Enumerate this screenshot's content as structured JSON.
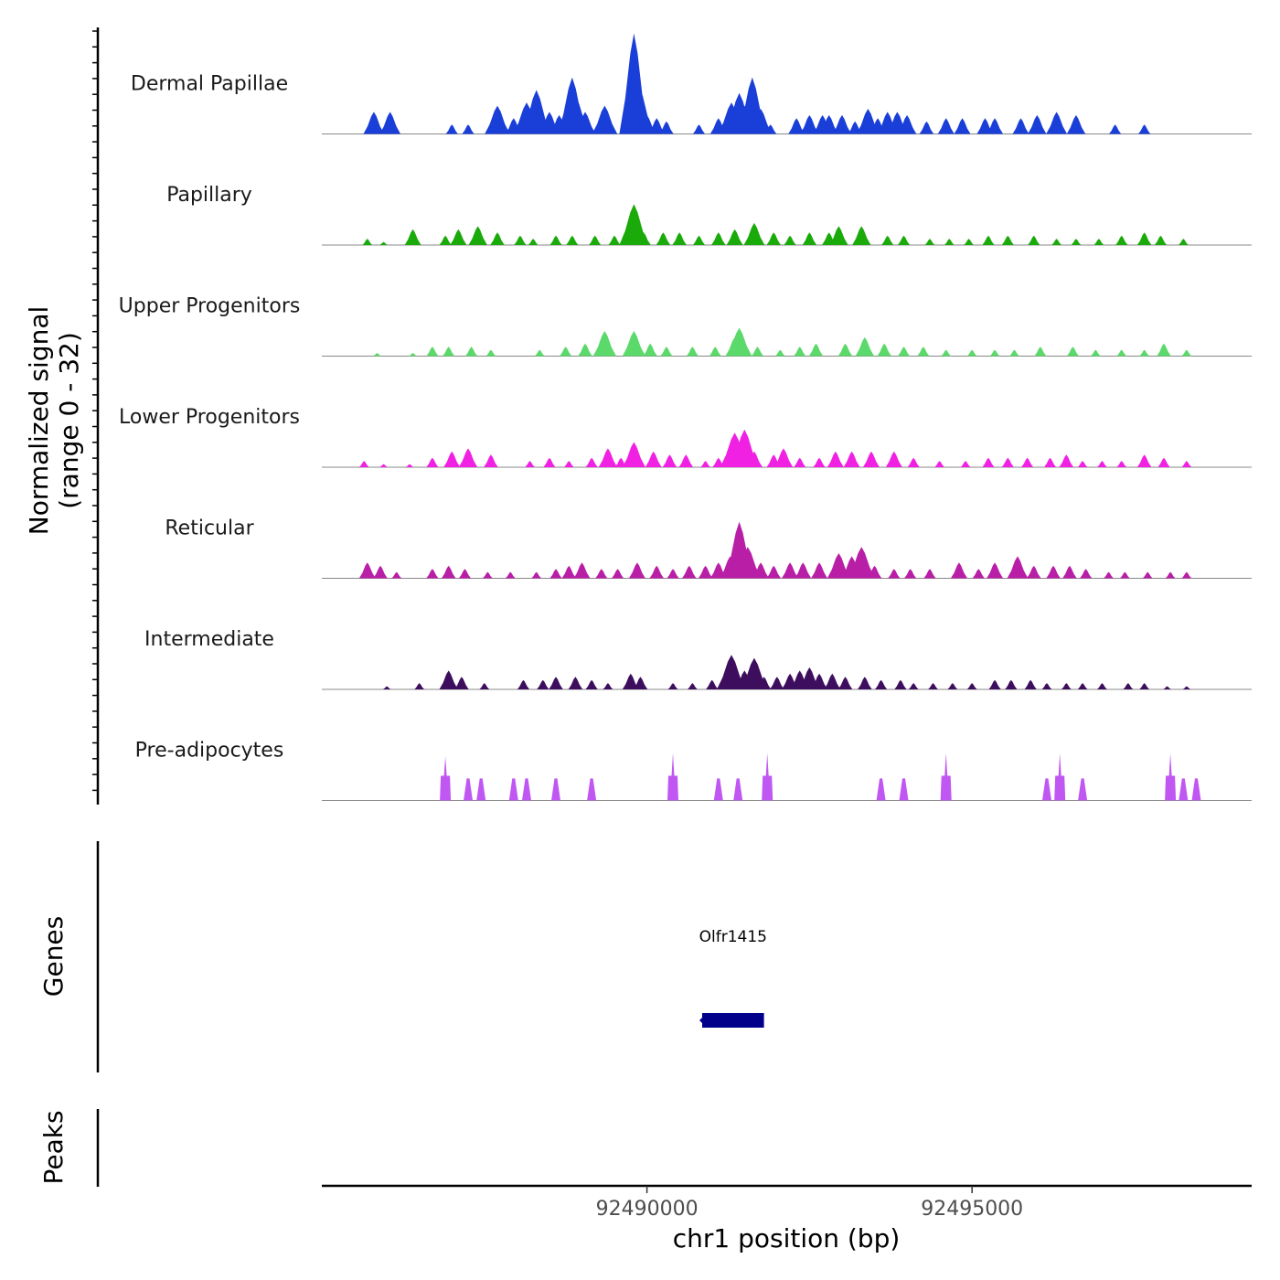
{
  "chart_data": {
    "type": "area",
    "title": "",
    "ylabel": "Normalized signal\n(range 0 - 32)",
    "ylabel_lines": [
      "Normalized signal",
      "(range 0 - 32)"
    ],
    "ylim": [
      0,
      32
    ],
    "xlabel": "chr1 position (bp)",
    "xlim": [
      92485000,
      92499300
    ],
    "xticks": [
      {
        "value": 92490000,
        "label": "92490000"
      },
      {
        "value": 92495000,
        "label": "92495000"
      }
    ],
    "tracks": [
      {
        "name": "Dermal Papillae",
        "color": "#1a3fd9",
        "peaks": [
          [
            92485800,
            7
          ],
          [
            92486050,
            7
          ],
          [
            92487000,
            3
          ],
          [
            92487250,
            3
          ],
          [
            92487700,
            9
          ],
          [
            92487950,
            5
          ],
          [
            92488150,
            10
          ],
          [
            92488300,
            14
          ],
          [
            92488500,
            7
          ],
          [
            92488650,
            6
          ],
          [
            92488850,
            18
          ],
          [
            92488900,
            12
          ],
          [
            92489050,
            7
          ],
          [
            92489350,
            9
          ],
          [
            92489800,
            32
          ],
          [
            92489880,
            15
          ],
          [
            92490000,
            6
          ],
          [
            92490150,
            5
          ],
          [
            92490300,
            4
          ],
          [
            92490800,
            3
          ],
          [
            92491100,
            5
          ],
          [
            92491300,
            10
          ],
          [
            92491420,
            13
          ],
          [
            92491500,
            9
          ],
          [
            92491620,
            18
          ],
          [
            92491650,
            12
          ],
          [
            92491750,
            8
          ],
          [
            92491900,
            3
          ],
          [
            92492300,
            5
          ],
          [
            92492500,
            6
          ],
          [
            92492700,
            6
          ],
          [
            92492800,
            6
          ],
          [
            92493000,
            6
          ],
          [
            92493200,
            4
          ],
          [
            92493400,
            8
          ],
          [
            92493550,
            5
          ],
          [
            92493700,
            7
          ],
          [
            92493850,
            7
          ],
          [
            92494000,
            6
          ],
          [
            92494300,
            4
          ],
          [
            92494600,
            5
          ],
          [
            92494850,
            5
          ],
          [
            92495200,
            5
          ],
          [
            92495350,
            5
          ],
          [
            92495750,
            5
          ],
          [
            92496000,
            6
          ],
          [
            92496300,
            7
          ],
          [
            92496600,
            6
          ],
          [
            92497200,
            3
          ],
          [
            92497650,
            3
          ]
        ]
      },
      {
        "name": "Papillary",
        "color": "#1aaa0a",
        "peaks": [
          [
            92485700,
            2
          ],
          [
            92485950,
            1
          ],
          [
            92486400,
            5
          ],
          [
            92486900,
            3
          ],
          [
            92487100,
            5
          ],
          [
            92487400,
            6
          ],
          [
            92487700,
            4
          ],
          [
            92488050,
            3
          ],
          [
            92488250,
            2
          ],
          [
            92488600,
            3
          ],
          [
            92488850,
            3
          ],
          [
            92489200,
            3
          ],
          [
            92489500,
            3
          ],
          [
            92489800,
            13
          ],
          [
            92489950,
            4
          ],
          [
            92490250,
            4
          ],
          [
            92490500,
            4
          ],
          [
            92490800,
            3
          ],
          [
            92491100,
            4
          ],
          [
            92491350,
            5
          ],
          [
            92491650,
            7
          ],
          [
            92491950,
            4
          ],
          [
            92492200,
            3
          ],
          [
            92492500,
            4
          ],
          [
            92492800,
            4
          ],
          [
            92492950,
            6
          ],
          [
            92493300,
            6
          ],
          [
            92493700,
            3
          ],
          [
            92493950,
            3
          ],
          [
            92494350,
            2
          ],
          [
            92494650,
            2
          ],
          [
            92494950,
            2
          ],
          [
            92495250,
            3
          ],
          [
            92495550,
            3
          ],
          [
            92495950,
            3
          ],
          [
            92496300,
            2
          ],
          [
            92496600,
            2
          ],
          [
            92496950,
            2
          ],
          [
            92497300,
            3
          ],
          [
            92497650,
            4
          ],
          [
            92497900,
            3
          ],
          [
            92498250,
            2
          ]
        ]
      },
      {
        "name": "Upper Progenitors",
        "color": "#5bd96a",
        "peaks": [
          [
            92485850,
            1
          ],
          [
            92486400,
            1
          ],
          [
            92486700,
            3
          ],
          [
            92486950,
            3
          ],
          [
            92487300,
            3
          ],
          [
            92487600,
            2
          ],
          [
            92488350,
            2
          ],
          [
            92488750,
            3
          ],
          [
            92489050,
            4
          ],
          [
            92489350,
            8
          ],
          [
            92489800,
            8
          ],
          [
            92490050,
            4
          ],
          [
            92490300,
            3
          ],
          [
            92490700,
            3
          ],
          [
            92491050,
            3
          ],
          [
            92491350,
            6
          ],
          [
            92491420,
            9
          ],
          [
            92491700,
            3
          ],
          [
            92492050,
            2
          ],
          [
            92492350,
            3
          ],
          [
            92492600,
            4
          ],
          [
            92493050,
            4
          ],
          [
            92493350,
            6
          ],
          [
            92493650,
            4
          ],
          [
            92493950,
            3
          ],
          [
            92494250,
            3
          ],
          [
            92494600,
            2
          ],
          [
            92495000,
            2
          ],
          [
            92495350,
            2
          ],
          [
            92495650,
            2
          ],
          [
            92496050,
            3
          ],
          [
            92496550,
            3
          ],
          [
            92496900,
            2
          ],
          [
            92497300,
            2
          ],
          [
            92497650,
            2
          ],
          [
            92497950,
            4
          ],
          [
            92498300,
            2
          ]
        ]
      },
      {
        "name": "Lower Progenitors",
        "color": "#f021e3",
        "peaks": [
          [
            92485650,
            2
          ],
          [
            92485950,
            1
          ],
          [
            92486350,
            1
          ],
          [
            92486700,
            3
          ],
          [
            92487000,
            5
          ],
          [
            92487250,
            6
          ],
          [
            92487600,
            4
          ],
          [
            92488200,
            2
          ],
          [
            92488500,
            3
          ],
          [
            92488800,
            2
          ],
          [
            92489150,
            3
          ],
          [
            92489400,
            6
          ],
          [
            92489600,
            3
          ],
          [
            92489800,
            8
          ],
          [
            92490100,
            5
          ],
          [
            92490350,
            4
          ],
          [
            92490600,
            4
          ],
          [
            92490900,
            2
          ],
          [
            92491100,
            3
          ],
          [
            92491350,
            11
          ],
          [
            92491500,
            12
          ],
          [
            92491650,
            5
          ],
          [
            92491950,
            4
          ],
          [
            92492100,
            6
          ],
          [
            92492350,
            3
          ],
          [
            92492650,
            3
          ],
          [
            92492900,
            5
          ],
          [
            92493150,
            5
          ],
          [
            92493450,
            5
          ],
          [
            92493800,
            5
          ],
          [
            92494100,
            3
          ],
          [
            92494500,
            2
          ],
          [
            92494900,
            2
          ],
          [
            92495250,
            3
          ],
          [
            92495550,
            3
          ],
          [
            92495850,
            3
          ],
          [
            92496200,
            3
          ],
          [
            92496450,
            4
          ],
          [
            92496700,
            2
          ],
          [
            92497000,
            2
          ],
          [
            92497300,
            2
          ],
          [
            92497650,
            4
          ],
          [
            92497950,
            3
          ],
          [
            92498300,
            2
          ]
        ]
      },
      {
        "name": "Reticular",
        "color": "#b81ea6",
        "peaks": [
          [
            92485700,
            5
          ],
          [
            92485900,
            4
          ],
          [
            92486150,
            2
          ],
          [
            92486700,
            3
          ],
          [
            92486950,
            4
          ],
          [
            92487200,
            3
          ],
          [
            92487550,
            2
          ],
          [
            92487900,
            2
          ],
          [
            92488300,
            2
          ],
          [
            92488600,
            3
          ],
          [
            92488800,
            4
          ],
          [
            92489000,
            5
          ],
          [
            92489300,
            3
          ],
          [
            92489550,
            3
          ],
          [
            92489850,
            5
          ],
          [
            92490150,
            4
          ],
          [
            92490400,
            3
          ],
          [
            92490650,
            4
          ],
          [
            92490900,
            4
          ],
          [
            92491100,
            5
          ],
          [
            92491280,
            7
          ],
          [
            92491420,
            18
          ],
          [
            92491550,
            10
          ],
          [
            92491750,
            5
          ],
          [
            92491950,
            4
          ],
          [
            92492200,
            5
          ],
          [
            92492400,
            5
          ],
          [
            92492650,
            5
          ],
          [
            92492950,
            8
          ],
          [
            92493150,
            7
          ],
          [
            92493300,
            10
          ],
          [
            92493500,
            4
          ],
          [
            92493800,
            3
          ],
          [
            92494050,
            3
          ],
          [
            92494350,
            3
          ],
          [
            92494800,
            5
          ],
          [
            92495100,
            3
          ],
          [
            92495350,
            5
          ],
          [
            92495700,
            7
          ],
          [
            92495950,
            4
          ],
          [
            92496250,
            4
          ],
          [
            92496500,
            4
          ],
          [
            92496750,
            3
          ],
          [
            92497100,
            2
          ],
          [
            92497350,
            2
          ],
          [
            92497700,
            2
          ],
          [
            92498050,
            2
          ],
          [
            92498300,
            2
          ]
        ]
      },
      {
        "name": "Intermediate",
        "color": "#3e0e5e",
        "peaks": [
          [
            92486000,
            1
          ],
          [
            92486500,
            2
          ],
          [
            92486950,
            6
          ],
          [
            92487150,
            4
          ],
          [
            92487500,
            2
          ],
          [
            92488100,
            3
          ],
          [
            92488400,
            3
          ],
          [
            92488600,
            4
          ],
          [
            92488900,
            4
          ],
          [
            92489150,
            3
          ],
          [
            92489400,
            2
          ],
          [
            92489750,
            5
          ],
          [
            92489900,
            4
          ],
          [
            92490400,
            2
          ],
          [
            92490700,
            2
          ],
          [
            92491000,
            3
          ],
          [
            92491200,
            5
          ],
          [
            92491300,
            11
          ],
          [
            92491500,
            6
          ],
          [
            92491650,
            10
          ],
          [
            92491800,
            4
          ],
          [
            92492000,
            4
          ],
          [
            92492200,
            5
          ],
          [
            92492350,
            6
          ],
          [
            92492500,
            7
          ],
          [
            92492650,
            5
          ],
          [
            92492850,
            5
          ],
          [
            92493050,
            4
          ],
          [
            92493350,
            4
          ],
          [
            92493600,
            3
          ],
          [
            92493900,
            3
          ],
          [
            92494100,
            2
          ],
          [
            92494400,
            2
          ],
          [
            92494700,
            2
          ],
          [
            92495000,
            2
          ],
          [
            92495350,
            3
          ],
          [
            92495600,
            3
          ],
          [
            92495900,
            3
          ],
          [
            92496150,
            2
          ],
          [
            92496450,
            2
          ],
          [
            92496700,
            2
          ],
          [
            92497000,
            2
          ],
          [
            92497400,
            2
          ],
          [
            92497650,
            2
          ],
          [
            92498000,
            1
          ],
          [
            92498300,
            1
          ]
        ]
      },
      {
        "name": "Pre-adipocytes",
        "color": "#c057f2",
        "peaks": [
          [
            92486900,
            14
          ],
          [
            92487250,
            7
          ],
          [
            92487450,
            7
          ],
          [
            92487950,
            7
          ],
          [
            92488150,
            7
          ],
          [
            92488600,
            7
          ],
          [
            92489150,
            7
          ],
          [
            92490400,
            15
          ],
          [
            92491100,
            7
          ],
          [
            92491400,
            7
          ],
          [
            92491850,
            15
          ],
          [
            92493600,
            7
          ],
          [
            92493950,
            7
          ],
          [
            92494600,
            15
          ],
          [
            92496150,
            7
          ],
          [
            92496350,
            15
          ],
          [
            92496700,
            7
          ],
          [
            92498050,
            15
          ],
          [
            92498250,
            7
          ],
          [
            92498450,
            7
          ]
        ]
      }
    ],
    "genes_label": "Genes",
    "genes": [
      {
        "name": "Olfr1415",
        "start": 92490850,
        "end": 92491800,
        "color": "#00008b"
      }
    ],
    "peaks_label": "Peaks"
  }
}
